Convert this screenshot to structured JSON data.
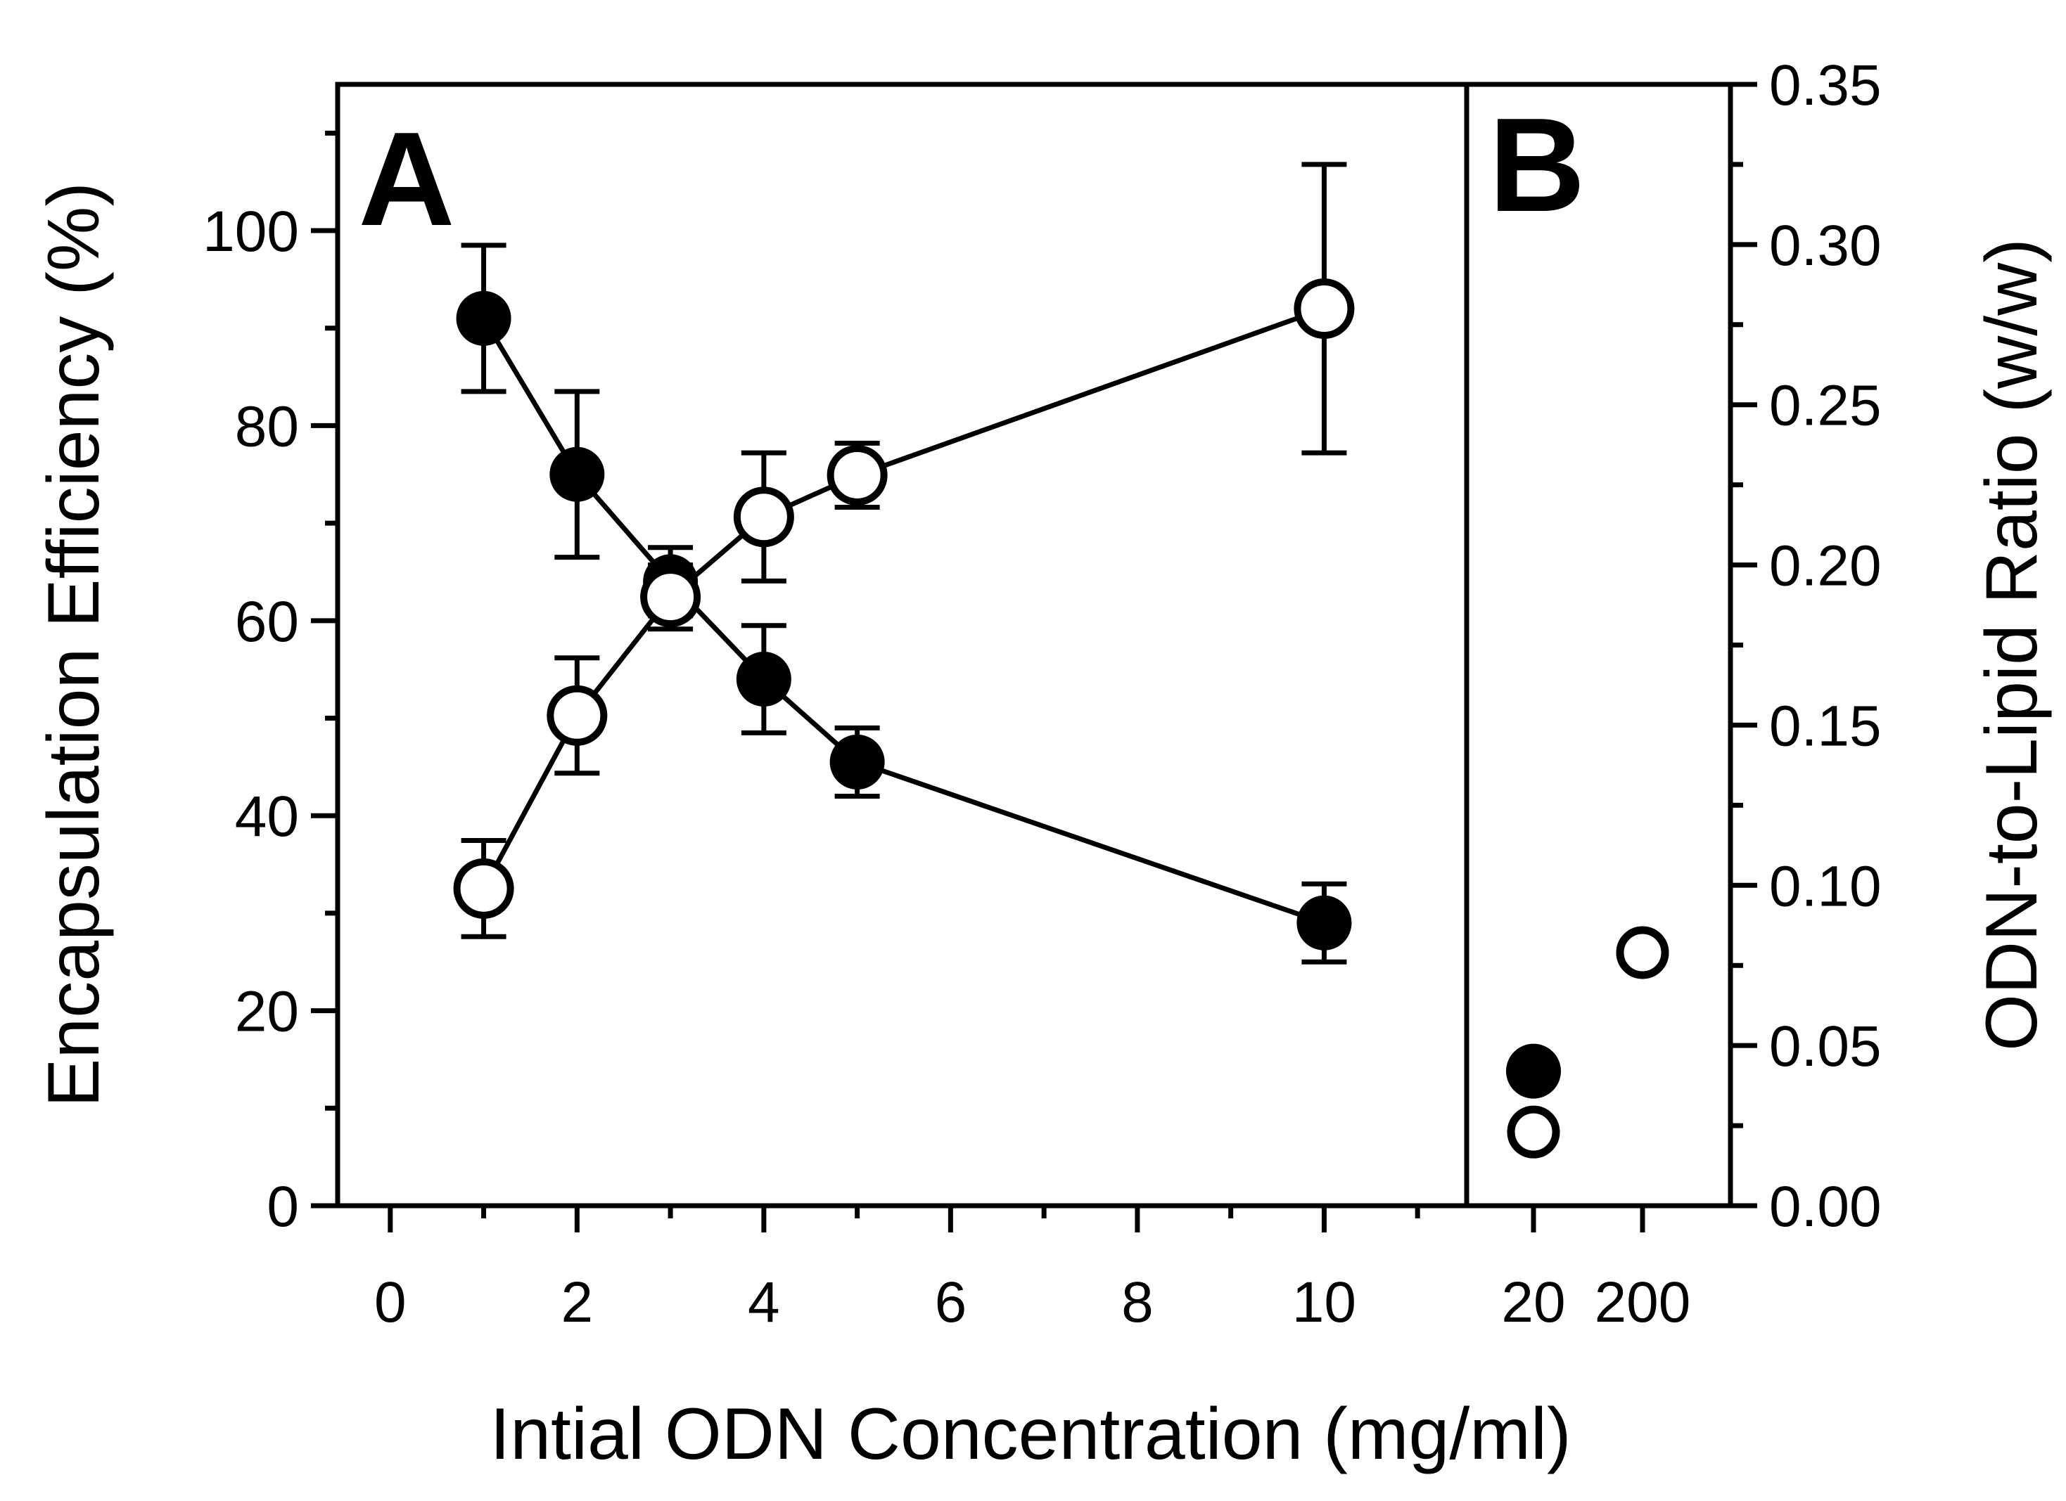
{
  "chart_data": {
    "type": "scatter",
    "xlabel": "Intial ODN Concentration (mg/ml)",
    "ylabel": "Encapsulation Efficiency (%)",
    "y2label": "ODN-to-Lipid Ratio (w/w)",
    "panel_labels": [
      "A",
      "B"
    ],
    "x_ticks_A": [
      "0",
      "2",
      "4",
      "6",
      "8",
      "10"
    ],
    "x_ticks_B": [
      "20",
      "200"
    ],
    "y_ticks": [
      "0",
      "20",
      "40",
      "60",
      "80",
      "100"
    ],
    "y2_ticks": [
      "0.00",
      "0.05",
      "0.10",
      "0.15",
      "0.20",
      "0.25",
      "0.30",
      "0.35"
    ],
    "xlim_A": [
      -0.3,
      11.3
    ],
    "ylim": [
      0,
      115
    ],
    "y2lim": [
      0,
      0.35
    ],
    "series": [
      {
        "name": "Encapsulation Efficiency",
        "marker": "filled-circle",
        "axis": "left",
        "panel_A": {
          "x": [
            1,
            2,
            3,
            4,
            5,
            10
          ],
          "y": [
            91,
            75,
            64,
            54,
            45.5,
            29
          ],
          "err": [
            7.5,
            8.5,
            3.5,
            5.5,
            3.5,
            4
          ]
        },
        "panel_B": {
          "x": [
            "20",
            "200"
          ],
          "y": [
            0.042,
            null
          ]
        }
      },
      {
        "name": "ODN-to-Lipid Ratio",
        "marker": "open-circle",
        "axis": "right",
        "panel_A": {
          "x": [
            1,
            2,
            3,
            4,
            5,
            10
          ],
          "y": [
            0.099,
            0.153,
            0.19,
            0.215,
            0.228,
            0.28
          ],
          "err": [
            0.015,
            0.018,
            0.01,
            0.02,
            0.01,
            0.045
          ]
        },
        "panel_B": {
          "x": [
            "20",
            "200"
          ],
          "y": [
            0.023,
            0.079
          ]
        }
      }
    ]
  }
}
